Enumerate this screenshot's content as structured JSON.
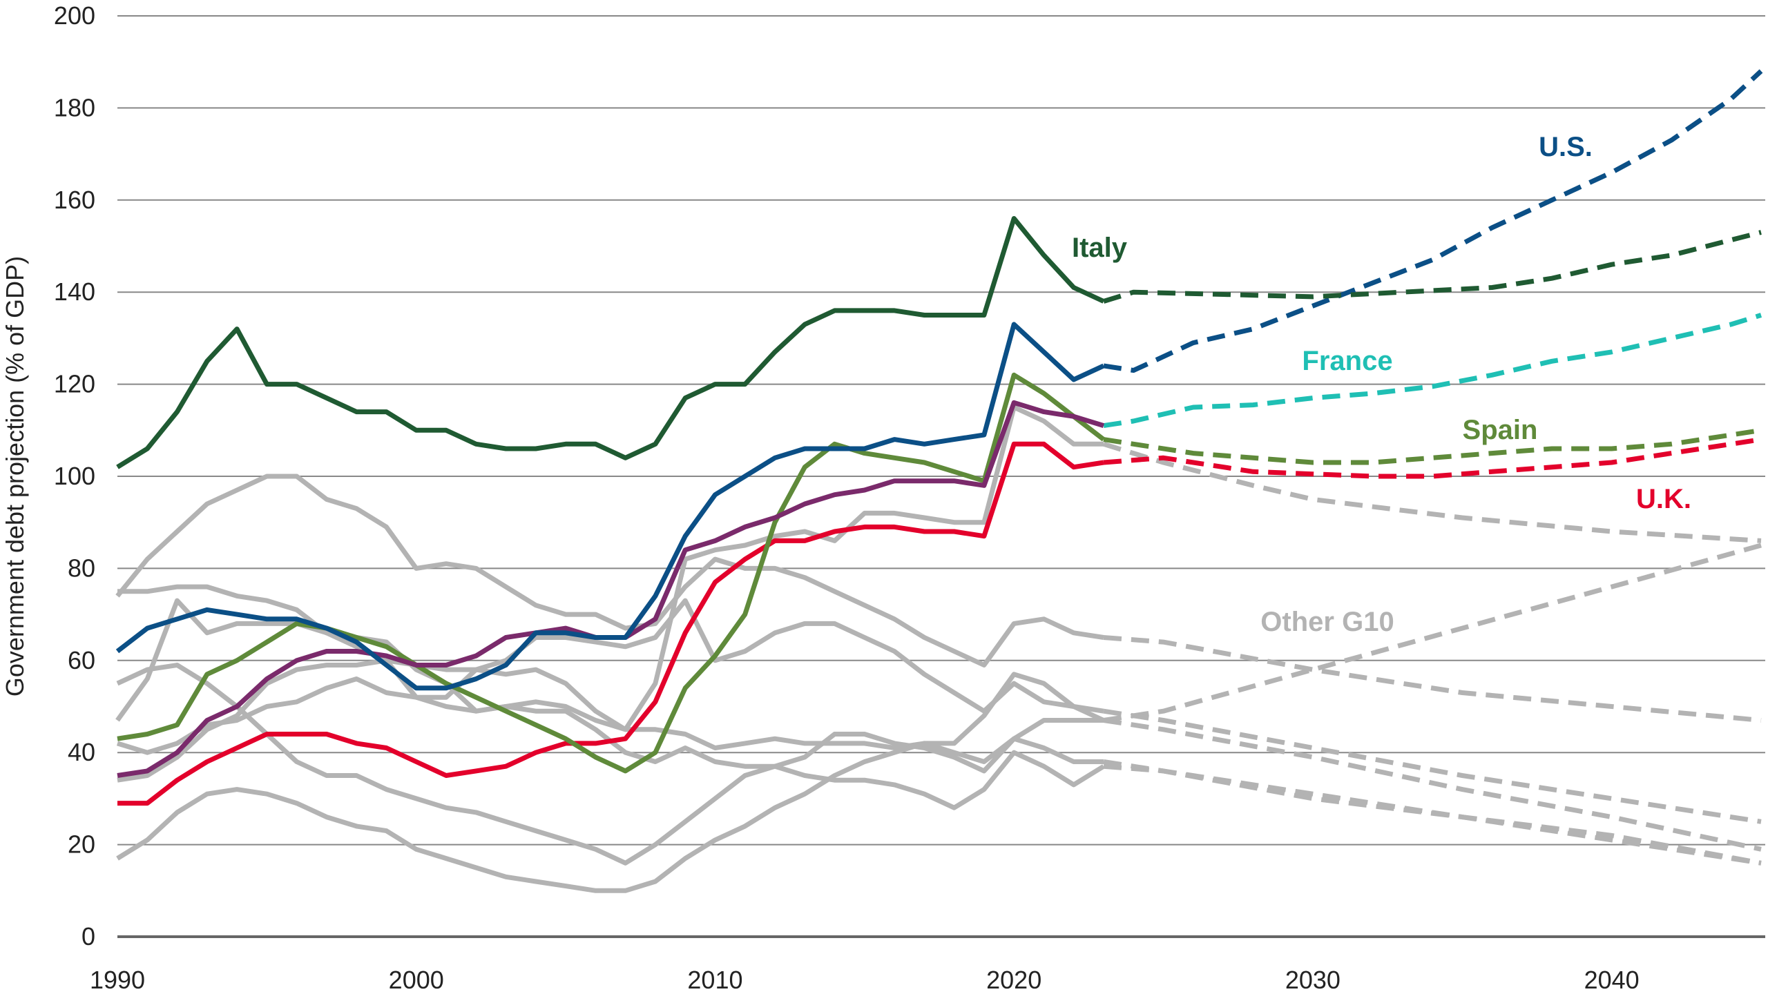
{
  "chart_data": {
    "type": "line",
    "title": "",
    "xlabel": "",
    "ylabel": "Government debt projection (% of GDP)",
    "xlim": [
      1990,
      2045
    ],
    "ylim": [
      0,
      200
    ],
    "grid": "horizontal",
    "x_ticks": [
      "1990",
      "2000",
      "2010",
      "2020",
      "2030",
      "2040"
    ],
    "y_ticks": [
      "0",
      "20",
      "40",
      "60",
      "80",
      "100",
      "120",
      "140",
      "160",
      "180",
      "200"
    ],
    "historical_years": [
      1990,
      1991,
      1992,
      1993,
      1994,
      1995,
      1996,
      1997,
      1998,
      1999,
      2000,
      2001,
      2002,
      2003,
      2004,
      2005,
      2006,
      2007,
      2008,
      2009,
      2010,
      2011,
      2012,
      2013,
      2014,
      2015,
      2016,
      2017,
      2018,
      2019,
      2020,
      2021,
      2022,
      2023
    ],
    "series": [
      {
        "name": "Italy",
        "color": "#1f5a32",
        "projection_color": "#1f5a32",
        "values": [
          102,
          106,
          114,
          125,
          132,
          120,
          120,
          117,
          114,
          114,
          110,
          110,
          107,
          106,
          106,
          107,
          107,
          104,
          107,
          117,
          120,
          120,
          127,
          133,
          136,
          136,
          136,
          135,
          135,
          135,
          156,
          148,
          141,
          138
        ],
        "projection": [
          [
            2023,
            138
          ],
          [
            2024,
            140
          ],
          [
            2027,
            139.5
          ],
          [
            2030,
            139
          ],
          [
            2033,
            140
          ],
          [
            2036,
            141
          ],
          [
            2038,
            143
          ],
          [
            2040,
            146
          ],
          [
            2042,
            148
          ],
          [
            2045,
            153
          ]
        ]
      },
      {
        "name": "U.S.",
        "color": "#0b4f86",
        "projection_color": "#0b4f86",
        "values": [
          62,
          67,
          69,
          71,
          70,
          69,
          69,
          67,
          64,
          59,
          54,
          54,
          56,
          59,
          66,
          66,
          65,
          65,
          74,
          87,
          96,
          100,
          104,
          106,
          106,
          106,
          108,
          107,
          108,
          109,
          133,
          127,
          121,
          124
        ],
        "projection": [
          [
            2023,
            124
          ],
          [
            2024,
            123
          ],
          [
            2026,
            129
          ],
          [
            2028,
            132
          ],
          [
            2030,
            137
          ],
          [
            2032,
            142
          ],
          [
            2034,
            147
          ],
          [
            2036,
            154
          ],
          [
            2038,
            160
          ],
          [
            2040,
            166
          ],
          [
            2042,
            173
          ],
          [
            2044,
            182
          ],
          [
            2045,
            188
          ]
        ]
      },
      {
        "name": "France",
        "color": "#7a2a6b",
        "projection_color": "#1fbfb4",
        "values": [
          35,
          36,
          40,
          47,
          50,
          56,
          60,
          62,
          62,
          61,
          59,
          59,
          61,
          65,
          66,
          67,
          65,
          65,
          69,
          84,
          86,
          89,
          91,
          94,
          96,
          97,
          99,
          99,
          99,
          98,
          116,
          114,
          113,
          111
        ],
        "projection": [
          [
            2023,
            111
          ],
          [
            2024,
            112
          ],
          [
            2026,
            115
          ],
          [
            2028,
            115.5
          ],
          [
            2030,
            117
          ],
          [
            2032,
            118
          ],
          [
            2034,
            119.5
          ],
          [
            2036,
            122
          ],
          [
            2038,
            125
          ],
          [
            2040,
            127
          ],
          [
            2042,
            130
          ],
          [
            2044,
            133
          ],
          [
            2045,
            135
          ]
        ]
      },
      {
        "name": "Spain",
        "color": "#5f8a3a",
        "projection_color": "#5f8a3a",
        "values": [
          43,
          44,
          46,
          57,
          60,
          64,
          68,
          67,
          65,
          63,
          59,
          55,
          52,
          49,
          46,
          43,
          39,
          36,
          40,
          54,
          61,
          70,
          90,
          102,
          107,
          105,
          104,
          103,
          101,
          99,
          122,
          118,
          113,
          108
        ],
        "projection": [
          [
            2023,
            108
          ],
          [
            2024,
            107
          ],
          [
            2026,
            105
          ],
          [
            2028,
            104
          ],
          [
            2030,
            103
          ],
          [
            2032,
            103
          ],
          [
            2034,
            104
          ],
          [
            2036,
            105
          ],
          [
            2038,
            106
          ],
          [
            2040,
            106
          ],
          [
            2042,
            107
          ],
          [
            2044,
            109
          ],
          [
            2045,
            110
          ]
        ]
      },
      {
        "name": "U.K.",
        "color": "#e3002b",
        "projection_color": "#e3002b",
        "values": [
          29,
          29,
          34,
          38,
          41,
          44,
          44,
          44,
          42,
          41,
          38,
          35,
          36,
          37,
          40,
          42,
          42,
          43,
          51,
          66,
          77,
          82,
          86,
          86,
          88,
          89,
          89,
          88,
          88,
          87,
          107,
          107,
          102,
          103
        ],
        "projection": [
          [
            2023,
            103
          ],
          [
            2025,
            104
          ],
          [
            2028,
            101
          ],
          [
            2030,
            100.5
          ],
          [
            2032,
            100
          ],
          [
            2034,
            100
          ],
          [
            2036,
            101
          ],
          [
            2038,
            102
          ],
          [
            2040,
            103
          ],
          [
            2042,
            105
          ],
          [
            2044,
            107
          ],
          [
            2045,
            108
          ]
        ]
      },
      {
        "name": "Other G10",
        "color": "#b3b3b3",
        "projection_color": "#b3b3b3",
        "members": [
          {
            "values": [
              74,
              82,
              88,
              94,
              97,
              100,
              100,
              95,
              93,
              89,
              80,
              81,
              80,
              76,
              72,
              70,
              70,
              67,
              68,
              76,
              82,
              80,
              80,
              78,
              75,
              72,
              69,
              65,
              62,
              59,
              68,
              69,
              66,
              65
            ],
            "projection": [
              [
                2023,
                65
              ],
              [
                2025,
                64
              ],
              [
                2030,
                58
              ],
              [
                2035,
                53
              ],
              [
                2040,
                50
              ],
              [
                2045,
                47
              ]
            ]
          },
          {
            "values": [
              75,
              75,
              76,
              76,
              74,
              73,
              71,
              66,
              65,
              64,
              58,
              55,
              49,
              50,
              51,
              50,
              47,
              45,
              55,
              82,
              84,
              85,
              87,
              88,
              86,
              92,
              92,
              91,
              90,
              90,
              115,
              112,
              107,
              107
            ],
            "projection": [
              [
                2023,
                107
              ],
              [
                2025,
                103
              ],
              [
                2028,
                98
              ],
              [
                2030,
                95
              ],
              [
                2035,
                91
              ],
              [
                2040,
                88
              ],
              [
                2045,
                86
              ]
            ]
          },
          {
            "values": [
              47,
              56,
              73,
              66,
              68,
              68,
              68,
              66,
              63,
              60,
              52,
              52,
              58,
              57,
              58,
              55,
              49,
              45,
              45,
              44,
              41,
              42,
              43,
              42,
              42,
              42,
              41,
              42,
              42,
              48,
              57,
              55,
              50,
              47
            ],
            "projection": [
              [
                2023,
                47
              ],
              [
                2025,
                49
              ],
              [
                2030,
                58
              ],
              [
                2035,
                67
              ],
              [
                2040,
                76
              ],
              [
                2045,
                85
              ]
            ]
          },
          {
            "values": [
              55,
              58,
              59,
              55,
              50,
              44,
              38,
              35,
              35,
              32,
              30,
              28,
              27,
              25,
              23,
              21,
              19,
              16,
              20,
              25,
              30,
              35,
              37,
              39,
              44,
              44,
              42,
              41,
              39,
              36,
              43,
              47,
              47,
              47
            ],
            "projection": [
              [
                2023,
                47
              ],
              [
                2025,
                45
              ],
              [
                2030,
                39
              ],
              [
                2035,
                32
              ],
              [
                2040,
                26
              ],
              [
                2045,
                19
              ]
            ]
          },
          {
            "values": [
              42,
              40,
              42,
              46,
              47,
              50,
              51,
              54,
              56,
              53,
              52,
              50,
              49,
              50,
              49,
              49,
              45,
              40,
              38,
              41,
              38,
              37,
              37,
              35,
              34,
              34,
              33,
              31,
              28,
              32,
              40,
              37,
              33,
              37
            ],
            "projection": [
              [
                2023,
                37
              ],
              [
                2025,
                36
              ],
              [
                2030,
                31
              ],
              [
                2035,
                26
              ],
              [
                2040,
                22
              ],
              [
                2045,
                16
              ]
            ]
          },
          {
            "values": [
              17,
              21,
              27,
              31,
              32,
              31,
              29,
              26,
              24,
              23,
              19,
              17,
              15,
              13,
              12,
              11,
              10,
              10,
              12,
              17,
              21,
              24,
              28,
              31,
              35,
              38,
              40,
              42,
              40,
              38,
              43,
              41,
              38,
              38
            ],
            "projection": [
              [
                2023,
                38
              ],
              [
                2025,
                36
              ],
              [
                2030,
                30
              ],
              [
                2035,
                26
              ],
              [
                2040,
                21
              ],
              [
                2045,
                16
              ]
            ]
          },
          {
            "values": [
              34,
              35,
              39,
              45,
              48,
              55,
              58,
              59,
              59,
              60,
              59,
              58,
              58,
              60,
              65,
              65,
              64,
              63,
              65,
              73,
              60,
              62,
              66,
              68,
              68,
              65,
              62,
              57,
              53,
              49,
              55,
              51,
              50,
              49
            ],
            "projection": [
              [
                2023,
                49
              ],
              [
                2025,
                47
              ],
              [
                2030,
                41
              ],
              [
                2035,
                35
              ],
              [
                2040,
                30
              ],
              [
                2045,
                25
              ]
            ]
          }
        ]
      }
    ]
  }
}
